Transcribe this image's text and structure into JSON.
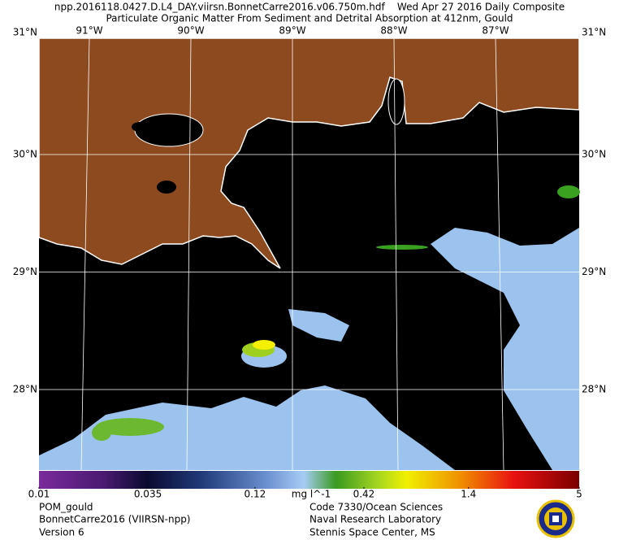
{
  "header": {
    "title": "npp.2016118.0427.D.L4_DAY.viirsn.BonnetCarre2016.v06.750m.hdf    Wed Apr 27 2016 Daily Composite",
    "subtitle": "Particulate Organic Matter From Sediment and Detrital Absorption at 412nm, Gould"
  },
  "map": {
    "longitudes": [
      {
        "value": -91,
        "label": "91°W"
      },
      {
        "value": -90,
        "label": "90°W"
      },
      {
        "value": -89,
        "label": "89°W"
      },
      {
        "value": -88,
        "label": "88°W"
      },
      {
        "value": -87,
        "label": "87°W"
      }
    ],
    "latitudes": [
      {
        "value": 31,
        "label": "31°N"
      },
      {
        "value": 30,
        "label": "30°N"
      },
      {
        "value": 29,
        "label": "29°N"
      },
      {
        "value": 28,
        "label": "28°N"
      }
    ]
  },
  "colorbar": {
    "ticks": [
      0.01,
      0.035,
      0.12,
      0.42,
      1.4,
      5
    ],
    "unit": "mg l^-1",
    "scale": "log"
  },
  "footer": {
    "left": [
      "POM_gould",
      "BonnetCarre2016 (VIIRSN-npp)",
      "Version 6"
    ],
    "right": [
      "Code 7330/Ocean Sciences",
      "Naval Research Laboratory",
      "Stennis Space Center, MS"
    ]
  }
}
